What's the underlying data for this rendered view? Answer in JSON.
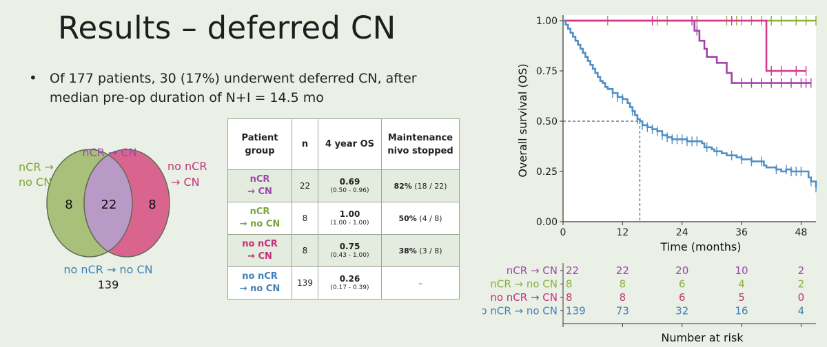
{
  "slide": {
    "title": "Results – deferred CN",
    "bullet": "Of 177 patients, 30 (17%) underwent deferred CN, after median pre-op duration of N+I = 14.5 mo"
  },
  "venn": {
    "left_label_1": "nCR →",
    "left_label_2": "no CN",
    "top_label": "nCR → CN",
    "right_label_1": "no nCR",
    "right_label_2": "→ CN",
    "bottom_label": "no nCR → no CN",
    "left_count": "8",
    "overlap_count": "22",
    "right_count": "8",
    "bottom_count": "139"
  },
  "table": {
    "headers": [
      "Patient group",
      "n",
      "4 year OS",
      "Maintenance nivo stopped"
    ],
    "rows": [
      {
        "group_1": "nCR",
        "group_2": "→ CN",
        "color": "#9b4aa8",
        "n": "22",
        "os": "0.69",
        "ci": "(0.50 - 0.96)",
        "maint_bold": "82%",
        "maint_rest": " (18 / 22)"
      },
      {
        "group_1": "nCR",
        "group_2": "→ no CN",
        "color": "#7aa33c",
        "n": "8",
        "os": "1.00",
        "ci": "(1.00 - 1.00)",
        "maint_bold": "50%",
        "maint_rest": " (4 / 8)"
      },
      {
        "group_1": "no nCR",
        "group_2": "→ CN",
        "color": "#c4317a",
        "n": "8",
        "os": "0.75",
        "ci": "(0.43 - 1.00)",
        "maint_bold": "38%",
        "maint_rest": " (3 / 8)"
      },
      {
        "group_1": "no nCR",
        "group_2": "→ no CN",
        "color": "#3f7fb8",
        "n": "139",
        "os": "0.26",
        "ci": "(0.17 - 0.39)",
        "maint_bold": "",
        "maint_rest": "–"
      }
    ]
  },
  "chart_data": {
    "type": "line",
    "xlabel": "Time (months)",
    "ylabel": "Overall survival (OS)",
    "xlim": [
      0,
      51
    ],
    "ylim": [
      0,
      1
    ],
    "x_ticks": [
      0,
      12,
      24,
      36,
      48
    ],
    "y_ticks": [
      "0.00",
      "0.25",
      "0.50",
      "0.75",
      "1.00"
    ],
    "median_marker": {
      "x": 15.5,
      "y": 0.5
    },
    "series": [
      {
        "name": "nCR → CN",
        "color": "#a442a9",
        "steps": [
          [
            0,
            1.0
          ],
          [
            26.5,
            0.95
          ],
          [
            27.5,
            0.9
          ],
          [
            28.5,
            0.86
          ],
          [
            29,
            0.82
          ],
          [
            31,
            0.79
          ],
          [
            33,
            0.74
          ],
          [
            34,
            0.69
          ],
          [
            50,
            0.69
          ]
        ],
        "censor": [
          26,
          27,
          36,
          38,
          40,
          42,
          44,
          46,
          48,
          49,
          50
        ]
      },
      {
        "name": "nCR → no CN",
        "color": "#8cb03d",
        "steps": [
          [
            0,
            1.0
          ],
          [
            51,
            1.0
          ]
        ],
        "censor": [
          9,
          19,
          21,
          27,
          33,
          35,
          36,
          38,
          40,
          42,
          44,
          47,
          49,
          51
        ]
      },
      {
        "name": "no nCR → CN",
        "color": "#d6388a",
        "steps": [
          [
            0,
            1.0
          ],
          [
            41,
            1.0
          ],
          [
            41,
            0.75
          ],
          [
            49,
            0.75
          ]
        ],
        "censor": [
          18,
          34,
          42,
          44,
          47,
          49
        ]
      },
      {
        "name": "no nCR → no CN",
        "color": "#4f8fc6",
        "steps": [
          [
            0,
            1.0
          ],
          [
            0.5,
            0.98
          ],
          [
            1,
            0.96
          ],
          [
            1.5,
            0.94
          ],
          [
            2,
            0.92
          ],
          [
            2.5,
            0.9
          ],
          [
            3,
            0.88
          ],
          [
            3.5,
            0.86
          ],
          [
            4,
            0.84
          ],
          [
            4.5,
            0.82
          ],
          [
            5,
            0.8
          ],
          [
            5.5,
            0.78
          ],
          [
            6,
            0.76
          ],
          [
            6.5,
            0.74
          ],
          [
            7,
            0.72
          ],
          [
            7.5,
            0.7
          ],
          [
            8,
            0.69
          ],
          [
            8.5,
            0.67
          ],
          [
            9,
            0.66
          ],
          [
            10,
            0.64
          ],
          [
            11,
            0.62
          ],
          [
            12,
            0.61
          ],
          [
            13,
            0.59
          ],
          [
            13.5,
            0.57
          ],
          [
            14,
            0.55
          ],
          [
            14.5,
            0.53
          ],
          [
            15,
            0.51
          ],
          [
            15.5,
            0.5
          ],
          [
            16,
            0.48
          ],
          [
            17,
            0.47
          ],
          [
            18,
            0.46
          ],
          [
            19,
            0.45
          ],
          [
            20,
            0.43
          ],
          [
            21,
            0.42
          ],
          [
            22,
            0.41
          ],
          [
            25,
            0.4
          ],
          [
            27,
            0.4
          ],
          [
            28,
            0.39
          ],
          [
            28.5,
            0.37
          ],
          [
            29,
            0.37
          ],
          [
            30,
            0.36
          ],
          [
            30.5,
            0.35
          ],
          [
            31,
            0.35
          ],
          [
            32,
            0.34
          ],
          [
            33,
            0.33
          ],
          [
            34,
            0.33
          ],
          [
            35,
            0.32
          ],
          [
            36,
            0.31
          ],
          [
            37,
            0.31
          ],
          [
            38,
            0.3
          ],
          [
            40,
            0.3
          ],
          [
            40.5,
            0.28
          ],
          [
            41,
            0.27
          ],
          [
            42,
            0.27
          ],
          [
            43,
            0.26
          ],
          [
            44,
            0.25
          ],
          [
            45,
            0.26
          ],
          [
            46,
            0.25
          ],
          [
            47,
            0.25
          ],
          [
            49,
            0.25
          ],
          [
            49.5,
            0.22
          ],
          [
            50,
            0.2
          ],
          [
            51,
            0.17
          ]
        ],
        "censor": [
          10,
          11,
          12,
          14,
          15,
          16,
          17,
          18,
          19,
          20,
          21,
          22,
          23,
          24,
          25,
          26,
          27,
          29,
          31,
          34,
          36,
          38,
          40,
          43,
          45,
          46,
          47,
          48,
          50,
          51
        ]
      }
    ]
  },
  "risk_table": {
    "title": "Number at risk",
    "rows": [
      {
        "label": "nCR → CN",
        "color": "#9b4aa8",
        "values": [
          "22",
          "22",
          "20",
          "10",
          "2"
        ]
      },
      {
        "label": "nCR → no CN",
        "color": "#8cb03d",
        "values": [
          "8",
          "8",
          "6",
          "4",
          "2"
        ]
      },
      {
        "label": "no nCR → CN",
        "color": "#c4317a",
        "values": [
          "8",
          "8",
          "6",
          "5",
          "0"
        ]
      },
      {
        "label": "no nCR → no CN",
        "color": "#3f7fb8",
        "values": [
          "139",
          "73",
          "32",
          "16",
          "4"
        ]
      }
    ]
  }
}
